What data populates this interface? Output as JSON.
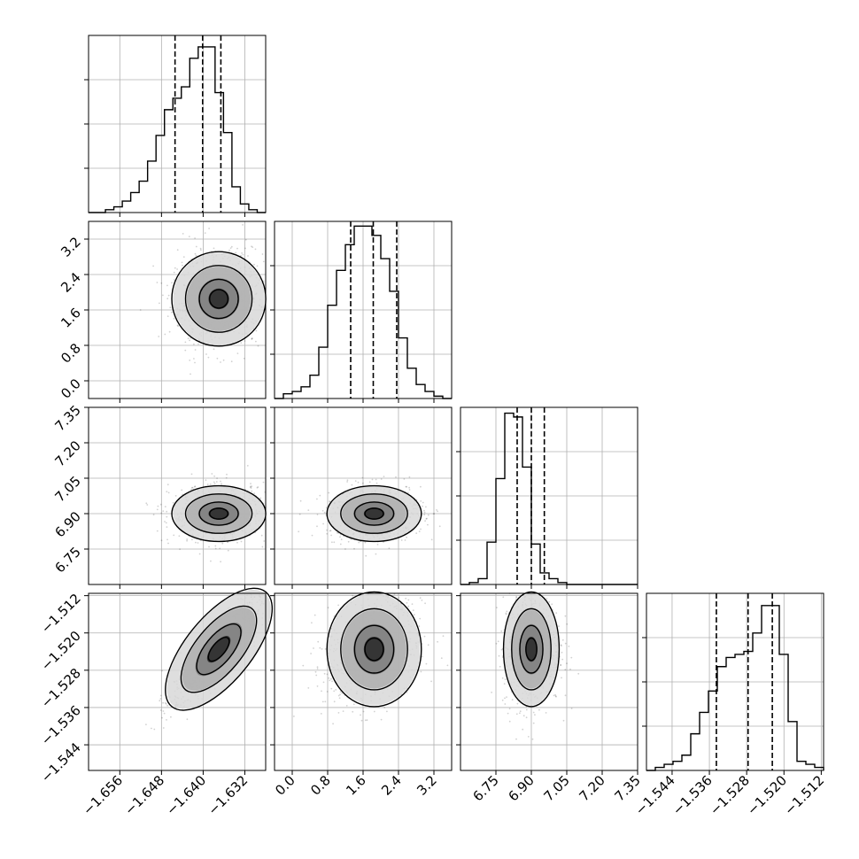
{
  "chart_data": {
    "type": "corner",
    "grid": true,
    "variables": [
      {
        "id": "p1",
        "range": [
          -1.662,
          -1.628
        ],
        "ticks": [
          -1.656,
          -1.648,
          -1.64,
          -1.632
        ],
        "tick_labels": [
          "−1.656",
          "−1.648",
          "−1.640",
          "−1.632"
        ],
        "quantiles": [
          -1.6454,
          -1.6401,
          -1.6366
        ],
        "hist_counts": [
          0,
          0,
          1,
          2,
          4,
          7,
          11,
          18,
          27,
          36,
          40,
          44,
          54,
          58,
          58,
          42,
          28,
          9,
          3,
          1,
          0
        ],
        "hist_ymax": 62,
        "peak": -1.637
      },
      {
        "id": "p2",
        "range": [
          -0.4,
          3.6
        ],
        "ticks": [
          0.0,
          0.8,
          1.6,
          2.4,
          3.2
        ],
        "tick_labels": [
          "0.0",
          "0.8",
          "1.6",
          "2.4",
          "3.2"
        ],
        "quantiles": [
          1.32,
          1.83,
          2.36
        ],
        "hist_counts": [
          0,
          2,
          3,
          5,
          10,
          22,
          40,
          55,
          66,
          74,
          74,
          70,
          60,
          46,
          26,
          13,
          6,
          3,
          1,
          0
        ],
        "hist_ymax": 76,
        "peak": 1.85
      },
      {
        "id": "p3",
        "range": [
          6.6,
          7.35
        ],
        "ticks": [
          6.75,
          6.9,
          7.05,
          7.2,
          7.35
        ],
        "tick_labels": [
          "6.75",
          "6.90",
          "7.05",
          "7.20",
          "7.35"
        ],
        "quantiles": [
          6.84,
          6.9,
          6.955
        ],
        "hist_counts": [
          0,
          1,
          3,
          22,
          55,
          89,
          87,
          61,
          21,
          6,
          3,
          1,
          0,
          0,
          0,
          0,
          0,
          0,
          0,
          0
        ],
        "hist_ymax": 92,
        "peak": 6.9
      },
      {
        "id": "p4",
        "range": [
          -1.5495,
          -1.5115
        ],
        "ticks": [
          -1.544,
          -1.536,
          -1.528,
          -1.52,
          -1.512
        ],
        "tick_labels": [
          "−1.544",
          "−1.536",
          "−1.528",
          "−1.520",
          "−1.512"
        ],
        "quantiles": [
          -1.5345,
          -1.5277,
          -1.5225
        ],
        "hist_counts": [
          0,
          1,
          2,
          3,
          5,
          12,
          19,
          26,
          34,
          37,
          38,
          39,
          45,
          54,
          54,
          38,
          16,
          3,
          2,
          1
        ],
        "hist_ymax": 58,
        "peak": -1.5235
      }
    ],
    "pairs": [
      {
        "x": "p1",
        "y": "p2",
        "rho": 0.1
      },
      {
        "x": "p1",
        "y": "p3",
        "rho": 0.05
      },
      {
        "x": "p2",
        "y": "p3",
        "rho": 0.1
      },
      {
        "x": "p1",
        "y": "p4",
        "rho": 0.9
      },
      {
        "x": "p2",
        "y": "p4",
        "rho": 0.25
      },
      {
        "x": "p3",
        "y": "p4",
        "rho": 0.05
      }
    ]
  }
}
